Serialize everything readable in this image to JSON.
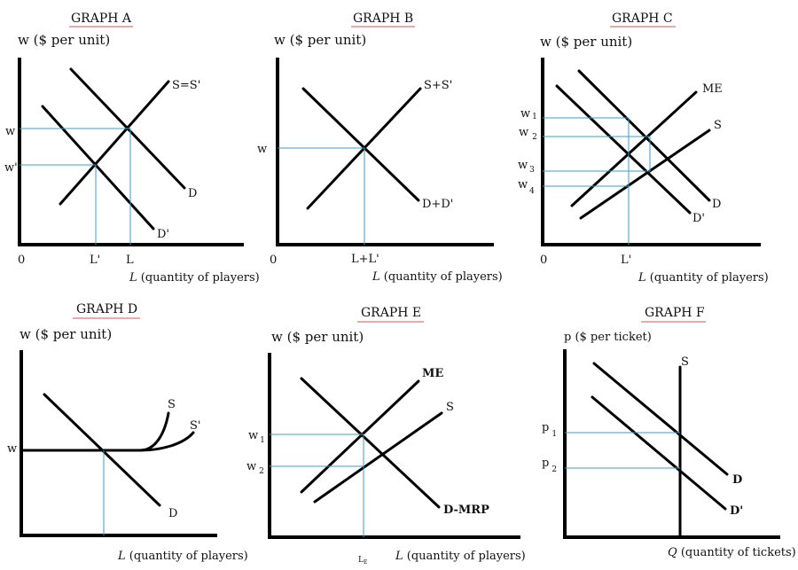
{
  "graphs": {
    "a": {
      "title": "GRAPH A",
      "y_axis": "w ($ per unit)",
      "x_axis_var": "L",
      "x_axis_desc": "(quantity of players)",
      "origin": "0",
      "curves": [
        "S=S'",
        "D",
        "D'"
      ],
      "y_ticks": [
        "w",
        "w'"
      ],
      "x_ticks": [
        "L'",
        "L"
      ]
    },
    "b": {
      "title": "GRAPH B",
      "y_axis": "w ($ per unit)",
      "x_axis_var": "L",
      "x_axis_desc": "(quantity of players)",
      "origin": "0",
      "curves": [
        "S+S'",
        "D+D'"
      ],
      "y_ticks": [
        "w"
      ],
      "x_ticks": [
        "L+L'"
      ]
    },
    "c": {
      "title": "GRAPH C",
      "y_axis": "w ($ per unit)",
      "x_axis_var": "L",
      "x_axis_desc": "(quantity of players)",
      "origin": "0",
      "curves": [
        "ME",
        "S",
        "D",
        "D'"
      ],
      "y_ticks": [
        "w",
        "w",
        "w",
        "w"
      ],
      "y_subs": [
        "1",
        "2",
        "3",
        "4"
      ],
      "x_ticks": [
        "L'"
      ]
    },
    "d": {
      "title": "GRAPH D",
      "y_axis": "w ($ per unit)",
      "x_axis_var": "L",
      "x_axis_desc": "(quantity of players)",
      "curves": [
        "S",
        "S'",
        "D"
      ],
      "y_ticks": [
        "w"
      ]
    },
    "e": {
      "title": "GRAPH E",
      "y_axis": "w ($ per unit)",
      "x_axis_var": "L",
      "x_axis_desc": "(quantity of players)",
      "curves": [
        "ME",
        "S",
        "D-MRP"
      ],
      "y_ticks": [
        "w",
        "w"
      ],
      "y_subs": [
        "1",
        "2"
      ],
      "x_ticks": [
        "L"
      ],
      "x_subs": [
        "E"
      ]
    },
    "f": {
      "title": "GRAPH F",
      "y_axis": "p ($ per ticket)",
      "x_axis_var": "Q",
      "x_axis_desc": "(quantity of tickets)",
      "curves": [
        "S",
        "D",
        "D'"
      ],
      "y_ticks": [
        "p",
        "p"
      ],
      "y_subs": [
        "1",
        "2"
      ]
    }
  }
}
